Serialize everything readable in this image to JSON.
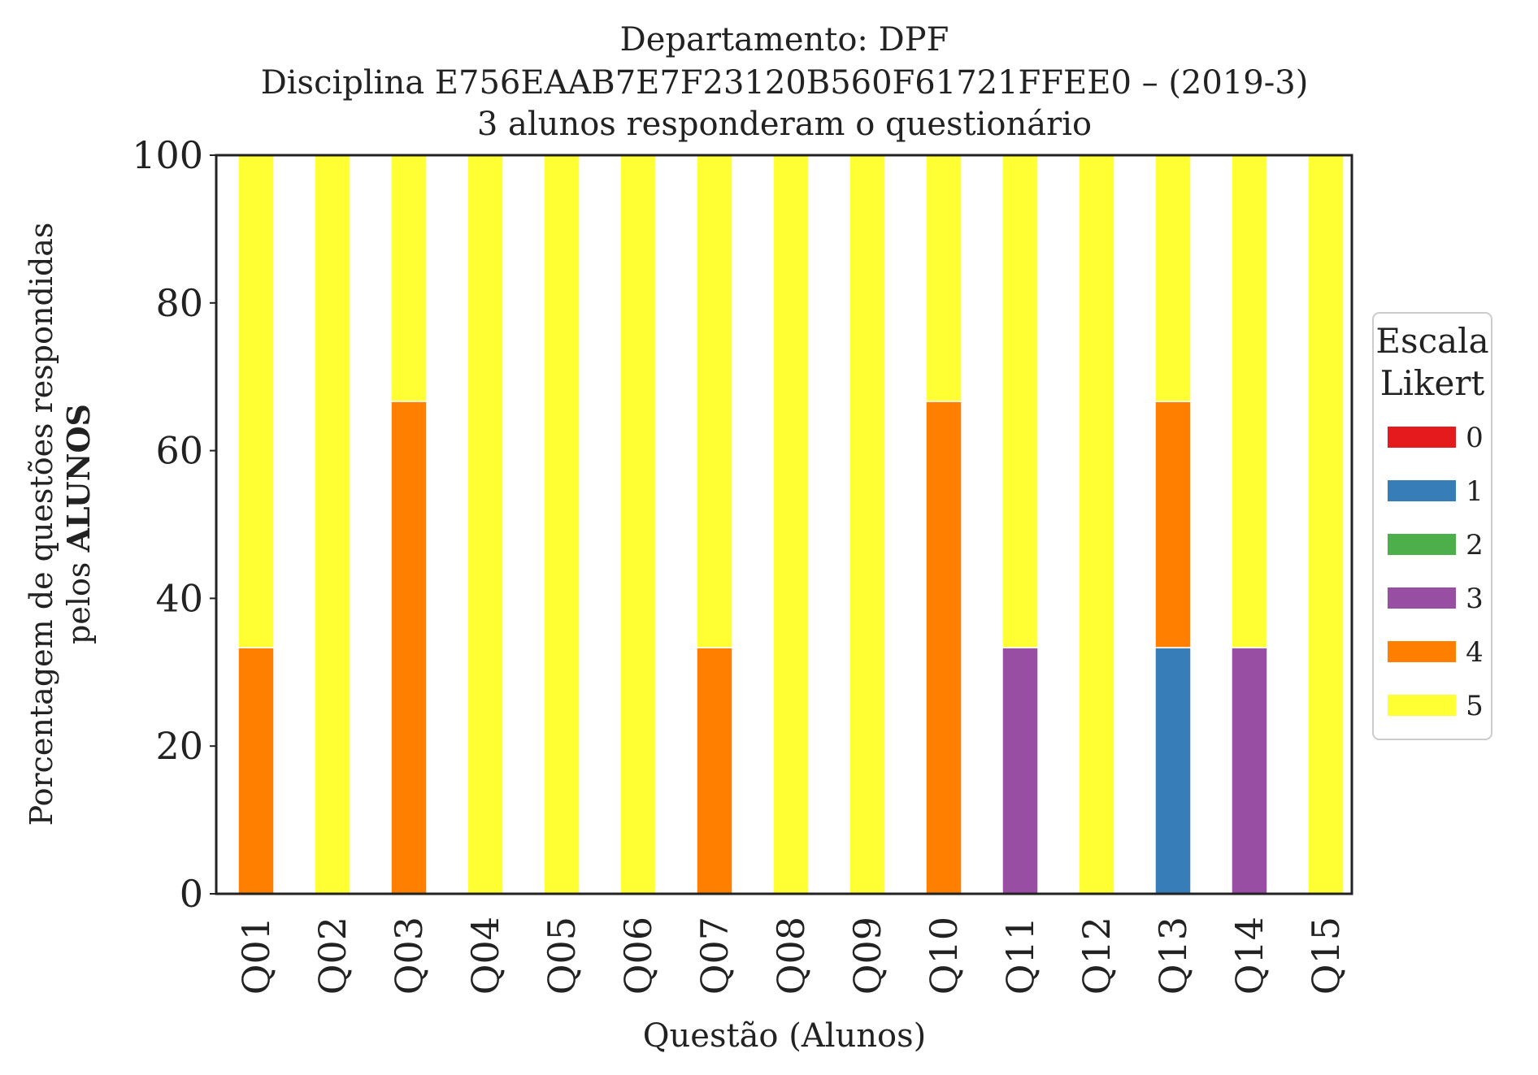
{
  "chart_data": {
    "type": "bar",
    "stacked": true,
    "title_lines": [
      "Departamento: DPF",
      "Disciplina E756EAAB7E7F23120B560F61721FFEE0 – (2019-3)",
      "3 alunos responderam o questionário"
    ],
    "xlabel": "Questão (Alunos)",
    "ylabel_line1": "Porcentagem de questões respondidas",
    "ylabel_line2_prefix": "pelos ",
    "ylabel_line2_bold": "ALUNOS",
    "ylim": [
      0,
      100
    ],
    "yticks": [
      "0",
      "20",
      "40",
      "60",
      "80",
      "100"
    ],
    "categories": [
      "Q01",
      "Q02",
      "Q03",
      "Q04",
      "Q05",
      "Q06",
      "Q07",
      "Q08",
      "Q09",
      "Q10",
      "Q11",
      "Q12",
      "Q13",
      "Q14",
      "Q15"
    ],
    "legend_title_lines": [
      "Escala",
      "Likert"
    ],
    "legend_position": "center-right outside",
    "grid": false,
    "series": [
      {
        "name": "0",
        "color": "#e41a1c",
        "values": [
          0,
          0,
          0,
          0,
          0,
          0,
          0,
          0,
          0,
          0,
          0,
          0,
          0,
          0,
          0
        ]
      },
      {
        "name": "1",
        "color": "#377eb8",
        "values": [
          0,
          0,
          0,
          0,
          0,
          0,
          0,
          0,
          0,
          0,
          0,
          0,
          33.33,
          0,
          0
        ]
      },
      {
        "name": "2",
        "color": "#4daf4a",
        "values": [
          0,
          0,
          0,
          0,
          0,
          0,
          0,
          0,
          0,
          0,
          0,
          0,
          0,
          0,
          0
        ]
      },
      {
        "name": "3",
        "color": "#984ea3",
        "values": [
          0,
          0,
          0,
          0,
          0,
          0,
          0,
          0,
          0,
          0,
          33.33,
          0,
          0,
          33.33,
          0
        ]
      },
      {
        "name": "4",
        "color": "#ff7f00",
        "values": [
          33.33,
          0,
          66.67,
          0,
          0,
          0,
          33.33,
          0,
          0,
          66.67,
          0,
          0,
          33.33,
          0,
          0
        ]
      },
      {
        "name": "5",
        "color": "#ffff33",
        "values": [
          66.67,
          100,
          33.33,
          100,
          100,
          100,
          66.67,
          100,
          100,
          33.33,
          66.67,
          100,
          33.33,
          66.67,
          100
        ]
      }
    ]
  }
}
